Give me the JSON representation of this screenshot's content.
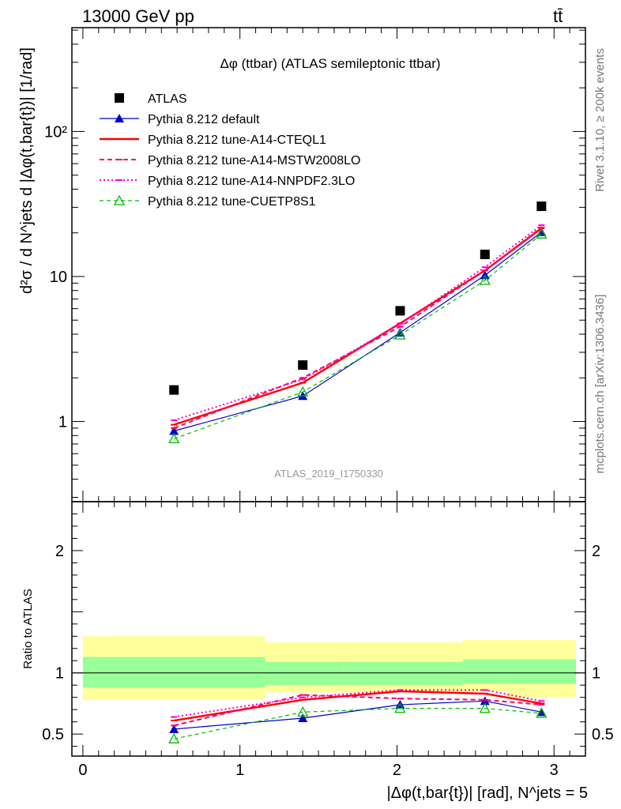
{
  "header": {
    "energy_label": "13000 GeV pp",
    "process_label": "tt̄"
  },
  "side_labels": {
    "rivet": "Rivet 3.1.10, ≥ 200k events",
    "mcplots": "mcplots.cern.ch [arXiv:1306.3436]"
  },
  "chart_data": {
    "type": "scatter",
    "title": "Δφ (ttbar) (ATLAS semileptonic ttbar)",
    "analysis_tag": "ATLAS_2019_I1750330",
    "ylabel": "d²σ / d N^jets d |Δφ(t,bar{t})| [1/rad]",
    "xlabel": "|Δφ(t,bar{t})| [rad], N^jets = 5",
    "x_ticks": [
      "0",
      "1",
      "2",
      "3"
    ],
    "xlim": [
      -0.07,
      3.2
    ],
    "main_panel": {
      "yscale": "log",
      "ylim": [
        0.28,
        520
      ],
      "y_tick_labels": [
        {
          "value": 1,
          "label": "1"
        },
        {
          "value": 10,
          "label": "10"
        },
        {
          "value": 100,
          "label": "10²"
        }
      ],
      "series": [
        {
          "name": "ATLAS",
          "style": "data",
          "color": "#000000",
          "x": [
            0.58,
            1.4,
            2.02,
            2.56,
            2.92
          ],
          "y": [
            1.65,
            2.45,
            5.8,
            14.2,
            30.5
          ]
        },
        {
          "name": "Pythia 8.212 default",
          "style": "solid-tri",
          "color": "#0000cc",
          "x": [
            0.58,
            1.4,
            2.02,
            2.56,
            2.92
          ],
          "y": [
            0.86,
            1.5,
            4.1,
            10.2,
            20.2
          ]
        },
        {
          "name": "Pythia 8.212 tune-A14-CTEQL1",
          "style": "thick",
          "color": "#ff0000",
          "x": [
            0.58,
            1.4,
            2.02,
            2.56,
            2.92
          ],
          "y": [
            0.95,
            1.85,
            4.75,
            11.0,
            21.5
          ]
        },
        {
          "name": "Pythia 8.212 tune-A14-MSTW2008LO",
          "style": "dashed",
          "color": "#ff0066",
          "x": [
            0.58,
            1.4,
            2.02,
            2.56,
            2.92
          ],
          "y": [
            0.9,
            2.0,
            4.5,
            11.0,
            21.8
          ]
        },
        {
          "name": "Pythia 8.212 tune-A14-NNPDF2.3LO",
          "style": "dotted",
          "color": "#ff00cc",
          "x": [
            0.58,
            1.4,
            2.02,
            2.56,
            2.92
          ],
          "y": [
            1.02,
            1.95,
            4.7,
            11.6,
            22.6
          ]
        },
        {
          "name": "Pythia 8.212 tune-CUETP8S1",
          "style": "dashed-open-tri",
          "color": "#00bb00",
          "x": [
            0.58,
            1.4,
            2.02,
            2.56,
            2.92
          ],
          "y": [
            0.76,
            1.6,
            3.95,
            9.4,
            19.6
          ]
        }
      ]
    },
    "ratio_panel": {
      "ylabel": "Ratio to ATLAS",
      "ylim": [
        0.32,
        2.4
      ],
      "y_tick_labels": [
        {
          "value": 0.5,
          "label": "0.5"
        },
        {
          "value": 1,
          "label": "1"
        },
        {
          "value": 2,
          "label": "2"
        }
      ],
      "bins": [
        0,
        1.16,
        1.66,
        2.42,
        2.7,
        3.14
      ],
      "band_stat": [
        [
          0.88,
          1.13
        ],
        [
          0.9,
          1.09
        ],
        [
          0.9,
          1.09
        ],
        [
          0.91,
          1.11
        ],
        [
          0.91,
          1.11
        ]
      ],
      "band_total": [
        [
          0.78,
          1.3
        ],
        [
          0.84,
          1.25
        ],
        [
          0.84,
          1.25
        ],
        [
          0.85,
          1.27
        ],
        [
          0.8,
          1.27
        ]
      ],
      "series": [
        {
          "name": "Pythia 8.212 default",
          "style": "solid-tri",
          "color": "#0000cc",
          "x": [
            0.58,
            1.4,
            2.02,
            2.56,
            2.92
          ],
          "y": [
            0.54,
            0.63,
            0.74,
            0.77,
            0.68
          ]
        },
        {
          "name": "Pythia 8.212 tune-A14-CTEQL1",
          "style": "thick",
          "color": "#ff0000",
          "x": [
            0.58,
            1.4,
            2.02,
            2.56,
            2.92
          ],
          "y": [
            0.61,
            0.78,
            0.85,
            0.83,
            0.75
          ]
        },
        {
          "name": "Pythia 8.212 tune-A14-MSTW2008LO",
          "style": "dashed",
          "color": "#ff0066",
          "x": [
            0.58,
            1.4,
            2.02,
            2.56,
            2.92
          ],
          "y": [
            0.57,
            0.82,
            0.79,
            0.78,
            0.74
          ]
        },
        {
          "name": "Pythia 8.212 tune-A14-NNPDF2.3LO",
          "style": "dotted",
          "color": "#ff00cc",
          "x": [
            0.58,
            1.4,
            2.02,
            2.56,
            2.92
          ],
          "y": [
            0.64,
            0.8,
            0.86,
            0.86,
            0.77
          ]
        },
        {
          "name": "Pythia 8.212 tune-CUETP8S1",
          "style": "dashed-open-tri",
          "color": "#00bb00",
          "x": [
            0.58,
            1.4,
            2.02,
            2.56,
            2.92
          ],
          "y": [
            0.46,
            0.68,
            0.71,
            0.71,
            0.67
          ]
        }
      ]
    }
  }
}
